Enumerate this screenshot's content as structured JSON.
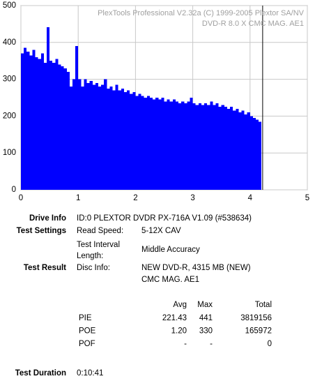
{
  "chart_data": {
    "type": "histogram",
    "watermark": [
      "PlexTools Professional V2.32a (C) 1999-2005 Plextor SA/NV",
      "DVD-R   8.0 X   CMC MAG. AE1"
    ],
    "bins": [
      0,
      0.05,
      0.1,
      0.15,
      0.2,
      0.25,
      0.3,
      0.35,
      0.4,
      0.45,
      0.5,
      0.55,
      0.6,
      0.65,
      0.7,
      0.75,
      0.8,
      0.85,
      0.9,
      0.95,
      1,
      1.05,
      1.1,
      1.15,
      1.2,
      1.25,
      1.3,
      1.35,
      1.4,
      1.45,
      1.5,
      1.55,
      1.6,
      1.65,
      1.7,
      1.75,
      1.8,
      1.85,
      1.9,
      1.95,
      2,
      2.05,
      2.1,
      2.15,
      2.2,
      2.25,
      2.3,
      2.35,
      2.4,
      2.45,
      2.5,
      2.55,
      2.6,
      2.65,
      2.7,
      2.75,
      2.8,
      2.85,
      2.9,
      2.95,
      3,
      3.05,
      3.1,
      3.15,
      3.2,
      3.25,
      3.3,
      3.35,
      3.4,
      3.45,
      3.5,
      3.55,
      3.6,
      3.65,
      3.7,
      3.75,
      3.8,
      3.85,
      3.9,
      3.95,
      4,
      4.05,
      4.1,
      4.15,
      4.2
    ],
    "values": [
      370,
      385,
      375,
      365,
      380,
      360,
      355,
      370,
      345,
      441,
      350,
      345,
      355,
      340,
      335,
      330,
      320,
      280,
      300,
      390,
      300,
      280,
      300,
      290,
      295,
      285,
      290,
      280,
      285,
      300,
      275,
      280,
      270,
      285,
      270,
      275,
      265,
      270,
      260,
      265,
      255,
      260,
      255,
      250,
      255,
      250,
      245,
      250,
      245,
      250,
      240,
      245,
      240,
      245,
      240,
      235,
      240,
      235,
      240,
      250,
      235,
      230,
      235,
      230,
      235,
      230,
      240,
      230,
      235,
      225,
      230,
      225,
      220,
      225,
      215,
      220,
      210,
      215,
      205,
      210,
      200,
      195,
      190,
      185
    ],
    "color": "#0000ff",
    "cursor_x": 4.22,
    "xlim": [
      0,
      5
    ],
    "xticks": [
      0,
      1,
      2,
      3,
      4,
      5
    ],
    "ylim": [
      0,
      500
    ],
    "yticks": [
      0,
      100,
      200,
      300,
      400,
      500
    ],
    "grid": true
  },
  "info": {
    "drive_info": {
      "label": "Drive Info",
      "value": "ID:0 PLEXTOR DVDR PX-716A V1.09 (#538634)"
    },
    "test_settings": {
      "label": "Test Settings",
      "read_speed": {
        "label": "Read Speed:",
        "value": "5-12X CAV"
      },
      "interval": {
        "label": [
          "Test Interval",
          "Length:"
        ],
        "value": "Middle Accuracy"
      }
    },
    "test_result": {
      "label": "Test Result",
      "disc_info": {
        "label": "Disc Info:",
        "value": [
          "NEW DVD-R, 4315 MB (NEW)",
          "CMC MAG. AE1"
        ]
      }
    },
    "table": {
      "header": [
        "Avg",
        "Max",
        "Total"
      ],
      "rows": [
        [
          "PIE",
          "221.43",
          "441",
          "3819156"
        ],
        [
          "POE",
          "1.20",
          "330",
          "165972"
        ],
        [
          "POF",
          "-",
          "-",
          "0"
        ]
      ]
    },
    "test_duration": {
      "label": "Test Duration",
      "value": "0:10:41"
    }
  }
}
